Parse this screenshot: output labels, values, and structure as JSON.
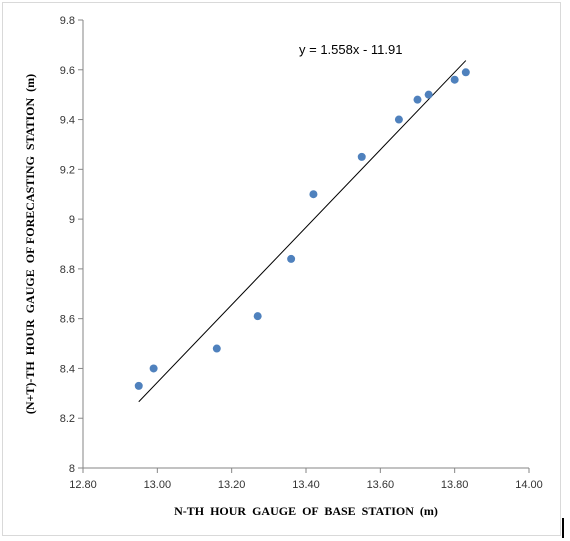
{
  "chart_data": {
    "type": "scatter",
    "title": "",
    "xlabel": "N-TH  HOUR  GAUGE  OF  BASE  STATION  (m)",
    "ylabel": "(N+T)-TH  HOUR  GAUGE  OF FORECASTING  STATION  (m)",
    "xlim": [
      12.8,
      14.0
    ],
    "ylim": [
      8,
      9.8
    ],
    "x_ticks": [
      "12.80",
      "13.00",
      "13.20",
      "13.40",
      "13.60",
      "13.80",
      "14.00"
    ],
    "y_ticks": [
      "8",
      "8.2",
      "8.4",
      "8.6",
      "8.8",
      "9",
      "9.2",
      "9.4",
      "9.6",
      "9.8"
    ],
    "grid": false,
    "legend": "none",
    "marker_color": "#4f81bd",
    "series": [
      {
        "points": [
          {
            "x": 12.95,
            "y": 8.33
          },
          {
            "x": 12.99,
            "y": 8.4
          },
          {
            "x": 13.16,
            "y": 8.48
          },
          {
            "x": 13.27,
            "y": 8.61
          },
          {
            "x": 13.36,
            "y": 8.84
          },
          {
            "x": 13.42,
            "y": 9.1
          },
          {
            "x": 13.55,
            "y": 9.25
          },
          {
            "x": 13.65,
            "y": 9.4
          },
          {
            "x": 13.7,
            "y": 9.48
          },
          {
            "x": 13.73,
            "y": 9.5
          },
          {
            "x": 13.8,
            "y": 9.56
          },
          {
            "x": 13.83,
            "y": 9.59
          }
        ]
      }
    ],
    "trendline": {
      "equation": "y = 1.558x - 11.91",
      "slope": 1.558,
      "intercept": -11.91,
      "x_range": [
        12.95,
        13.83
      ]
    }
  }
}
